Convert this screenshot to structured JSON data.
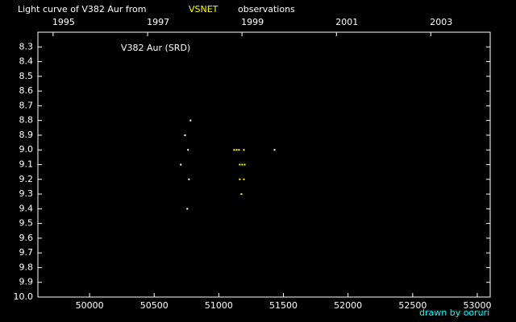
{
  "chart_data": {
    "type": "scatter",
    "title": "Light curve of V382 Aur from",
    "title_highlight": "VSNET",
    "title_end": "observations",
    "annotation": "V382 Aur (SRD)",
    "credit": "drawn by ooruri",
    "xlim": [
      49600,
      53100
    ],
    "xticks": [
      50000,
      50500,
      51000,
      51500,
      52000,
      52500,
      53000
    ],
    "x2ticks": [
      {
        "value": 49718,
        "label": "1995"
      },
      {
        "value": 50449,
        "label": "1997"
      },
      {
        "value": 51179,
        "label": "1999"
      },
      {
        "value": 51910,
        "label": "2001"
      },
      {
        "value": 52640,
        "label": "2003"
      }
    ],
    "ylim": [
      10.0,
      8.2
    ],
    "yticks": [
      8.3,
      8.4,
      8.5,
      8.6,
      8.7,
      8.8,
      8.9,
      {
        "value": 9.0,
        "label": "9.0"
      },
      9.1,
      9.2,
      9.3,
      9.4,
      9.5,
      9.6,
      9.7,
      9.8,
      9.9,
      {
        "value": 10.0,
        "label": "10.0"
      }
    ],
    "series": [
      {
        "color": "#ffffff",
        "x": [
          50781,
          50738,
          50762,
          50706,
          50769,
          50756,
          51431
        ],
        "values": [
          8.8,
          8.9,
          9.0,
          9.1,
          9.2,
          9.4,
          9.0
        ]
      },
      {
        "color": "#ffff00",
        "x": [
          51119,
          51138,
          51156,
          51194,
          51162,
          51181,
          51200,
          51162,
          51194,
          51175
        ],
        "values": [
          9.0,
          9.0,
          9.0,
          9.0,
          9.1,
          9.1,
          9.1,
          9.2,
          9.2,
          9.3
        ]
      }
    ]
  }
}
